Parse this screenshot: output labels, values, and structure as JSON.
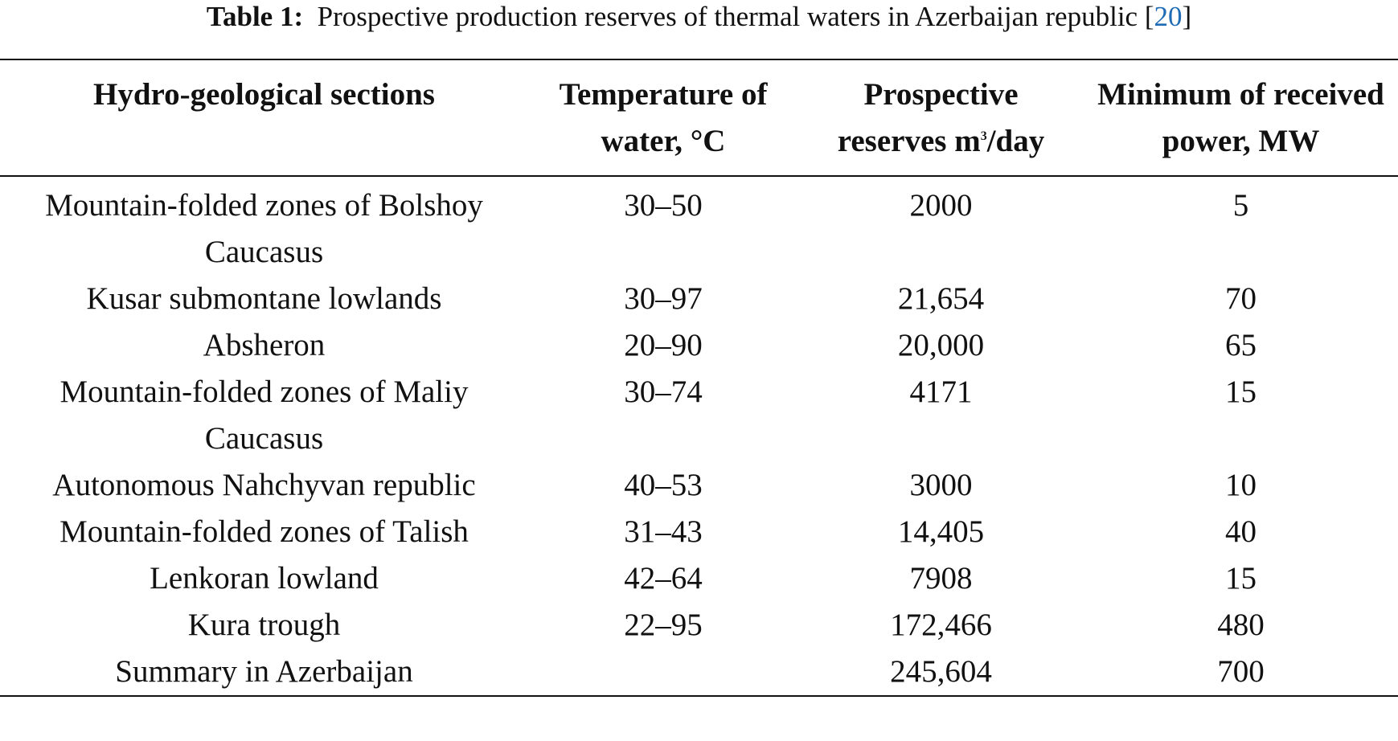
{
  "caption": {
    "label": "Table 1:",
    "text": "Prospective production reserves of thermal waters in Azerbaijan republic [",
    "ref": "20",
    "close": "]"
  },
  "table": {
    "headers": {
      "section": "Hydro-geological sections",
      "temperature": "Temperature of water, °C",
      "reserves_pre": "Prospective reserves m",
      "reserves_sup": "3",
      "reserves_post": "/day",
      "power": "Minimum of received power, MW"
    },
    "rows": [
      {
        "section": "Mountain-folded zones of Bolshoy Caucasus",
        "temperature": "30–50",
        "reserves": "2000",
        "power": "5"
      },
      {
        "section": "Kusar submontane lowlands",
        "temperature": "30–97",
        "reserves": "21,654",
        "power": "70"
      },
      {
        "section": "Absheron",
        "temperature": "20–90",
        "reserves": "20,000",
        "power": "65"
      },
      {
        "section": "Mountain-folded zones of Maliy Caucasus",
        "temperature": "30–74",
        "reserves": "4171",
        "power": "15"
      },
      {
        "section": "Autonomous Nahchyvan republic",
        "temperature": "40–53",
        "reserves": "3000",
        "power": "10"
      },
      {
        "section": "Mountain-folded zones of Talish",
        "temperature": "31–43",
        "reserves": "14,405",
        "power": "40"
      },
      {
        "section": "Lenkoran lowland",
        "temperature": "42–64",
        "reserves": "7908",
        "power": "15"
      },
      {
        "section": "Kura trough",
        "temperature": "22–95",
        "reserves": "172,466",
        "power": "480"
      },
      {
        "section": "Summary in Azerbaijan",
        "temperature": "",
        "reserves": "245,604",
        "power": "700"
      }
    ]
  }
}
